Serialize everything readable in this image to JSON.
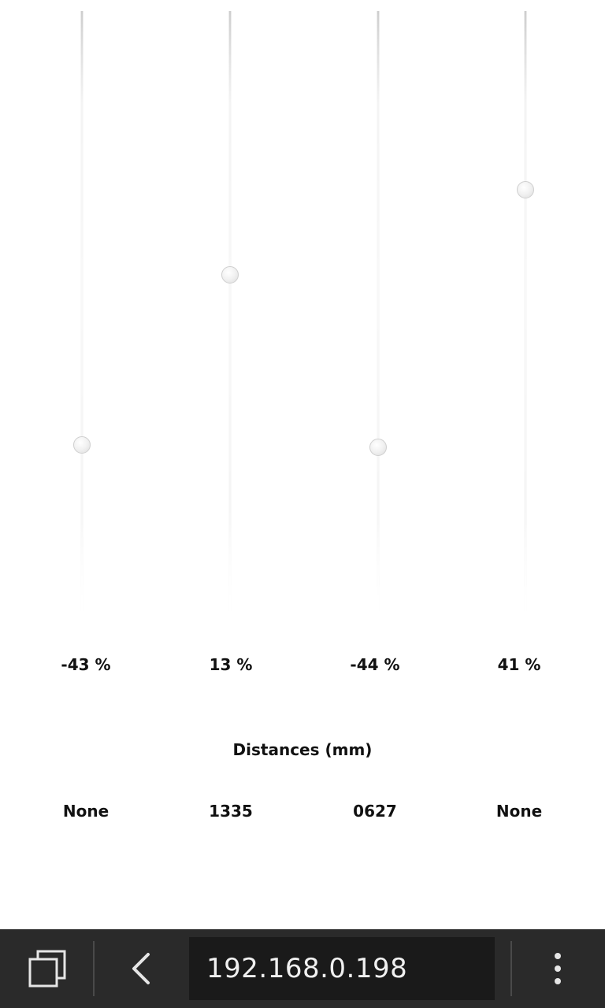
{
  "sliders": [
    {
      "value": -43,
      "label": "-43 %"
    },
    {
      "value": 13,
      "label": "13 %"
    },
    {
      "value": -44,
      "label": "-44 %"
    },
    {
      "value": 41,
      "label": "41 %"
    }
  ],
  "distances": {
    "title": "Distances (mm)",
    "values": [
      "None",
      "1335",
      "0627",
      "None"
    ]
  },
  "navbar": {
    "tabs_icon": "tabs-icon",
    "back_icon": "back-chevron-icon",
    "url": "192.168.0.198",
    "menu_icon": "overflow-menu-icon"
  }
}
